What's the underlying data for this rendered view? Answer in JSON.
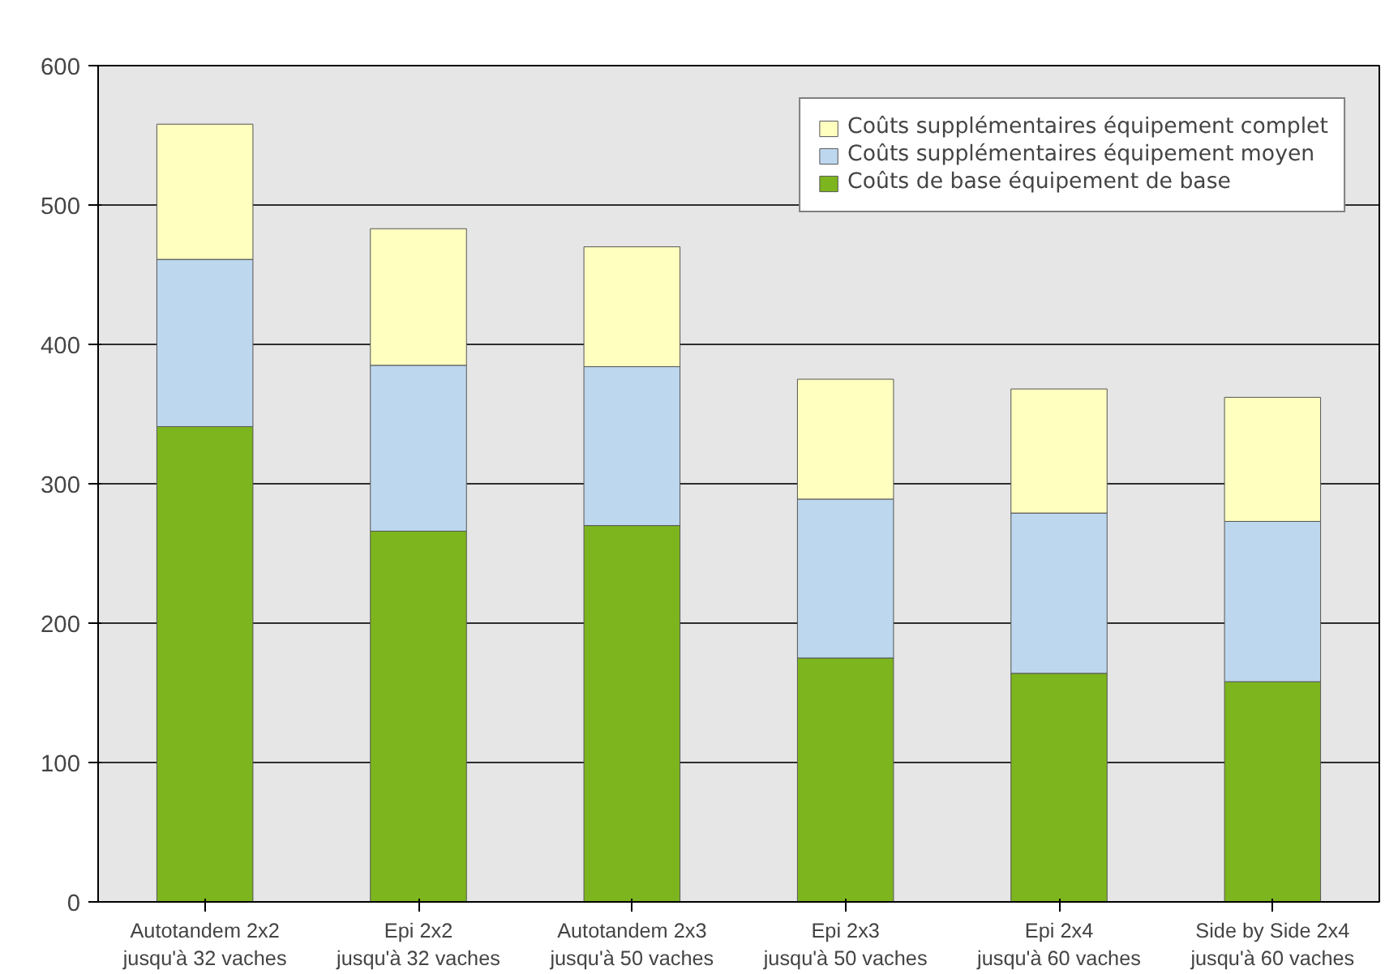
{
  "chart_data": {
    "type": "bar",
    "stacked": true,
    "categories": [
      "Autotandem 2x2\njusqu'à 32 vaches",
      "Epi 2x2\njusqu'à 32 vaches",
      "Autotandem 2x3\njusqu'à 50 vaches",
      "Epi 2x3\njusqu'à 50 vaches",
      "Epi 2x4\njusqu'à 60 vaches",
      "Side by Side 2x4\njusqu'à 60 vaches"
    ],
    "series": [
      {
        "name": "Coûts de base équipement de base",
        "color": "#7db51e",
        "values": [
          341,
          266,
          270,
          175,
          164,
          158
        ]
      },
      {
        "name": "Coûts supplémentaires équipement moyen",
        "color": "#bdd7ee",
        "values": [
          120,
          119,
          114,
          114,
          115,
          115
        ]
      },
      {
        "name": "Coûts supplémentaires équipement complet",
        "color": "#ffffc0",
        "values": [
          97,
          98,
          86,
          86,
          89,
          89
        ]
      }
    ],
    "ylim": [
      0,
      600
    ],
    "yticks": [
      0,
      100,
      200,
      300,
      400,
      500,
      600
    ],
    "grid": "y",
    "legend": "top right"
  }
}
